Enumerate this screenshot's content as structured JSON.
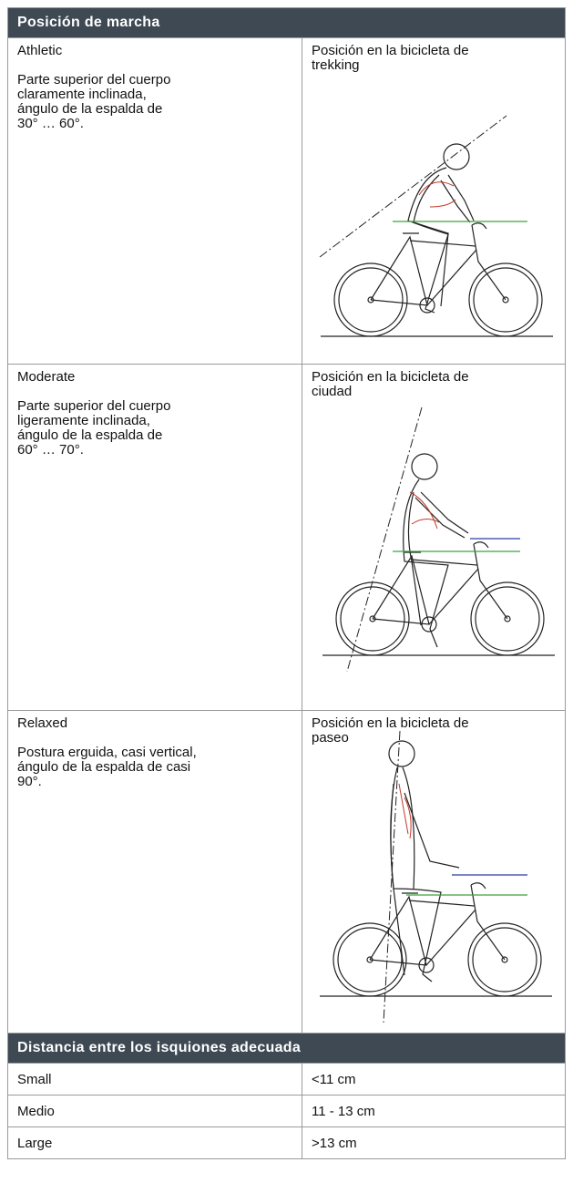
{
  "header": {
    "title": "Posición de marcha"
  },
  "positions": [
    {
      "name": "Athletic",
      "description": [
        "Parte superior del cuerpo",
        "claramente inclinada,",
        "ángulo de la espalda de",
        "30° … 60°."
      ],
      "caption": [
        "Posición en la bicicleta de",
        "trekking"
      ]
    },
    {
      "name": "Moderate",
      "description": [
        "Parte superior del cuerpo",
        "ligeramente inclinada,",
        "ángulo de la espalda de",
        "60° … 70°."
      ],
      "caption": [
        "Posición en la bicicleta de",
        "ciudad"
      ]
    },
    {
      "name": "Relaxed",
      "description": [
        "Postura erguida, casi vertical,",
        "ángulo de la espalda de casi",
        "90°."
      ],
      "caption": [
        "Posición en la bicicleta de",
        "paseo"
      ]
    }
  ],
  "sit_bones": {
    "title": "Distancia entre los isquiones adecuada",
    "rows": [
      [
        "Small",
        "<11 cm"
      ],
      [
        "Medio",
        "11 - 13 cm"
      ],
      [
        "Large",
        ">13 cm"
      ]
    ]
  }
}
